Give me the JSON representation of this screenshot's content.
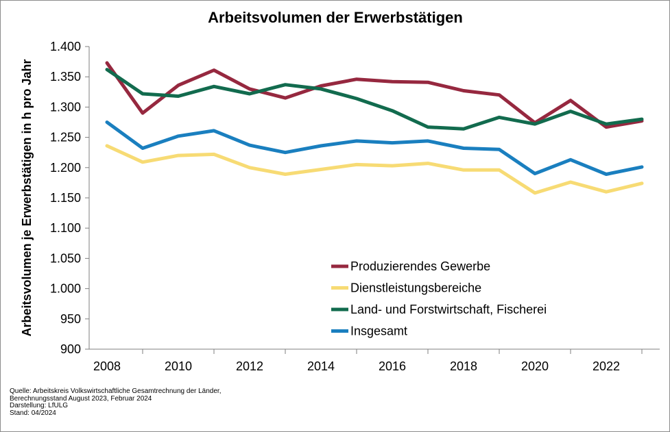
{
  "chart_data": {
    "type": "line",
    "title": "Arbeitsvolumen der Erwerbstätigen",
    "ylabel": "Arbeitsvolumen je Erwerbstätigen  in h pro Jahr",
    "xlabel": "",
    "ylim": [
      900,
      1400
    ],
    "yticks": [
      900,
      950,
      1000,
      1050,
      1100,
      1150,
      1200,
      1250,
      1300,
      1350,
      1400
    ],
    "ytick_labels": [
      "900",
      "950",
      "1.000",
      "1.050",
      "1.100",
      "1.150",
      "1.200",
      "1.250",
      "1.300",
      "1.350",
      "1.400"
    ],
    "xlim": [
      2007.5,
      2023.5
    ],
    "xticks_major": [
      2008,
      2010,
      2012,
      2014,
      2016,
      2018,
      2020,
      2022
    ],
    "xtick_labels": [
      "2008",
      "2010",
      "2012",
      "2014",
      "2016",
      "2018",
      "2020",
      "2022"
    ],
    "x": [
      2008,
      2009,
      2010,
      2011,
      2012,
      2013,
      2014,
      2015,
      2016,
      2017,
      2018,
      2019,
      2020,
      2021,
      2022,
      2023
    ],
    "grid": false,
    "legend_position": "bottom-center",
    "series": [
      {
        "name": "Produzierendes Gewerbe",
        "color": "#96283f",
        "values": [
          1373,
          1290,
          1336,
          1361,
          1330,
          1315,
          1335,
          1346,
          1342,
          1341,
          1327,
          1320,
          1274,
          1311,
          1267,
          1277
        ]
      },
      {
        "name": "Dienstleistungsbereiche",
        "color": "#f7db74",
        "values": [
          1236,
          1209,
          1220,
          1222,
          1200,
          1189,
          1197,
          1205,
          1203,
          1207,
          1196,
          1196,
          1158,
          1176,
          1160,
          1174
        ]
      },
      {
        "name": "Land- und Forstwirtschaft, Fischerei",
        "color": "#126b4e",
        "values": [
          1362,
          1322,
          1318,
          1334,
          1322,
          1337,
          1330,
          1314,
          1294,
          1267,
          1264,
          1283,
          1272,
          1293,
          1272,
          1280
        ]
      },
      {
        "name": "Insgesamt",
        "color": "#1a7fbf",
        "values": [
          1275,
          1232,
          1252,
          1261,
          1237,
          1225,
          1236,
          1244,
          1241,
          1244,
          1232,
          1230,
          1190,
          1213,
          1189,
          1201
        ]
      }
    ]
  },
  "notes": {
    "source_line1": "Quelle:  Arbeitskreis Volkswirtschaftliche Gesamtrechnung der Länder,",
    "source_line2": "Berechnungsstand August 2023, Februar 2024",
    "credit": "Darstellung: LfULG",
    "status": "Stand: 04/2024"
  }
}
